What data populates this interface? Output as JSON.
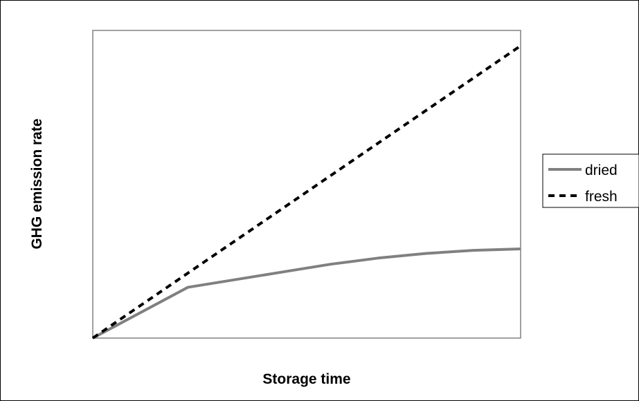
{
  "chart_data": {
    "type": "line",
    "title": "",
    "xlabel": "Storage time",
    "ylabel": "GHG emission rate",
    "xlim": [
      0,
      9
    ],
    "ylim": [
      0,
      10
    ],
    "grid": false,
    "legend_position": "right",
    "series": [
      {
        "name": "dried",
        "color": "#808080",
        "style": "solid",
        "x": [
          0,
          2,
          3,
          4,
          5,
          6,
          7,
          8,
          9
        ],
        "y": [
          0,
          1.65,
          1.9,
          2.15,
          2.4,
          2.6,
          2.75,
          2.85,
          2.9
        ]
      },
      {
        "name": "fresh",
        "color": "#000000",
        "style": "dashed",
        "x": [
          0,
          9
        ],
        "y": [
          0,
          9.5
        ]
      }
    ]
  }
}
